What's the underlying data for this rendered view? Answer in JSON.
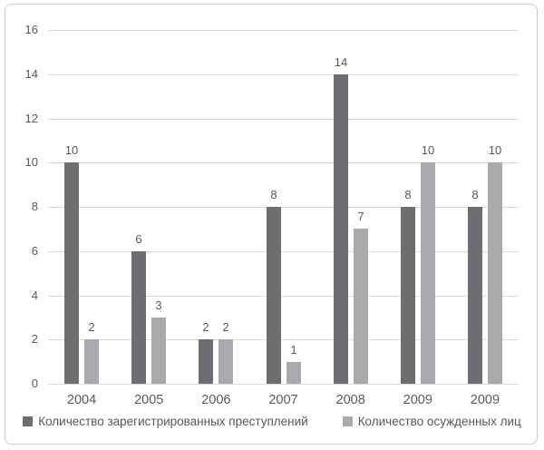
{
  "chart_data": {
    "type": "bar",
    "title": "",
    "xlabel": "",
    "ylabel": "",
    "categories": [
      "2004",
      "2005",
      "2006",
      "2007",
      "2008",
      "2009",
      "2009"
    ],
    "series": [
      {
        "name": "Количество зарегистрированных преступлений",
        "color": "#6d6e71",
        "values": [
          10,
          6,
          2,
          8,
          14,
          8,
          8
        ]
      },
      {
        "name": "Количество осужденных лиц",
        "color": "#a9aaad",
        "values": [
          2,
          3,
          2,
          1,
          7,
          10,
          10
        ]
      }
    ],
    "ylim": [
      0,
      16
    ],
    "ytick_step": 2,
    "yticks": [
      0,
      2,
      4,
      6,
      8,
      10,
      12,
      14,
      16
    ],
    "grid": true,
    "data_labels": true,
    "legend_position": "bottom",
    "colors": {
      "gridline": "#d9dadc",
      "axis_text": "#595959",
      "value_label_text": "#595959",
      "chart_border": "#c9cbce",
      "background": "#ffffff"
    }
  }
}
